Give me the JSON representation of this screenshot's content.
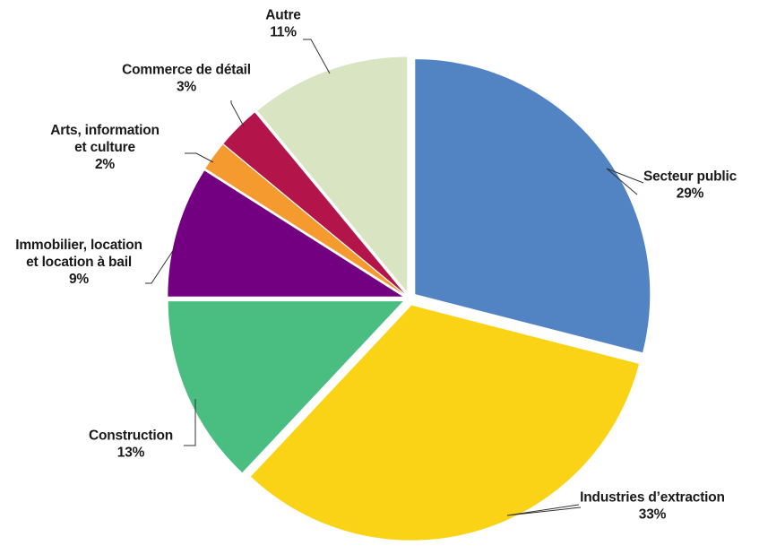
{
  "chart_data": {
    "type": "pie",
    "title": "",
    "start_angle_deg": 0,
    "direction": "clockwise",
    "slices": [
      {
        "label": [
          "Secteur public"
        ],
        "pct": "29%",
        "value": 29,
        "color": "#5284c4"
      },
      {
        "label": [
          "Industries d’extraction"
        ],
        "pct": "33%",
        "value": 33,
        "color": "#fad216"
      },
      {
        "label": [
          "Construction"
        ],
        "pct": "13%",
        "value": 13,
        "color": "#4abd80"
      },
      {
        "label": [
          "Immobilier, location",
          "et location à bail"
        ],
        "pct": "9%",
        "value": 9,
        "color": "#720080"
      },
      {
        "label": [
          "Arts, information",
          "et culture"
        ],
        "pct": "2%",
        "value": 2,
        "color": "#f59a2e"
      },
      {
        "label": [
          "Commerce de détail"
        ],
        "pct": "3%",
        "value": 3,
        "color": "#b3154b"
      },
      {
        "label": [
          "Autre"
        ],
        "pct": "11%",
        "value": 11,
        "color": "#d8e4c2"
      }
    ]
  }
}
